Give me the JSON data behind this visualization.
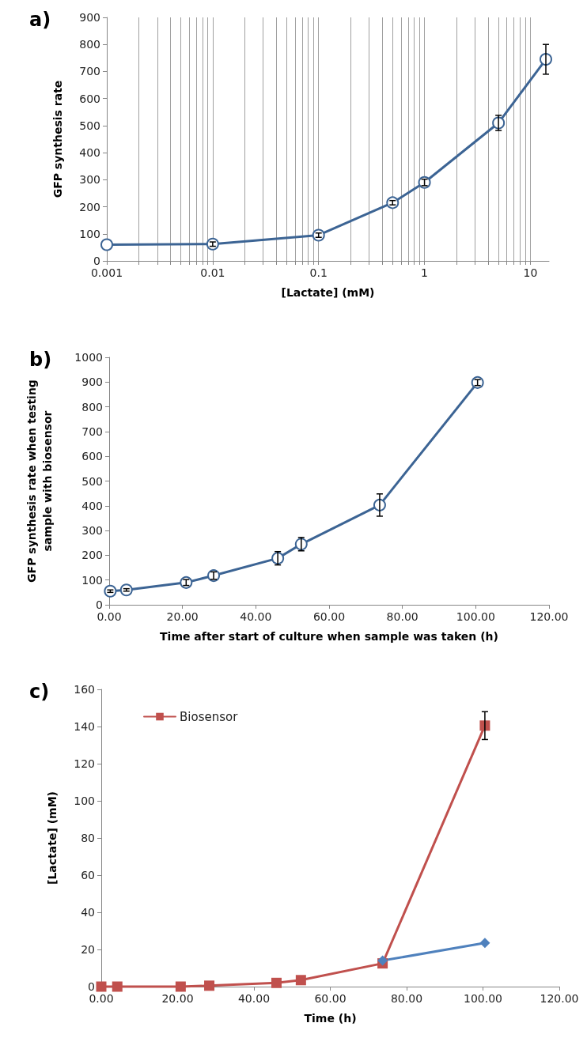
{
  "chart_data": [
    {
      "type": "line",
      "title": "a)",
      "xlabel": "[Lactate] (mM)",
      "ylabel": "GFP synthesis rate",
      "log": "x",
      "grid": "x",
      "marker": "circle",
      "line_style": "solid",
      "legend": false,
      "xlim": [
        0.001,
        15
      ],
      "ylim": [
        0,
        900
      ],
      "yticks": [
        0,
        100,
        200,
        300,
        400,
        500,
        600,
        700,
        800,
        900
      ],
      "xticks": [
        0.001,
        {
          "value": 0.002,
          "label": null
        },
        {
          "value": 0.003,
          "label": null
        },
        {
          "value": 0.004,
          "label": null
        },
        {
          "value": 0.005,
          "label": null
        },
        {
          "value": 0.006,
          "label": null
        },
        {
          "value": 0.007,
          "label": null
        },
        {
          "value": 0.008,
          "label": null
        },
        {
          "value": 0.009,
          "label": null
        },
        0.01,
        {
          "value": 0.02,
          "label": null
        },
        {
          "value": 0.03,
          "label": null
        },
        {
          "value": 0.04,
          "label": null
        },
        {
          "value": 0.05,
          "label": null
        },
        {
          "value": 0.06,
          "label": null
        },
        {
          "value": 0.07,
          "label": null
        },
        {
          "value": 0.08,
          "label": null
        },
        {
          "value": 0.09,
          "label": null
        },
        0.1,
        {
          "value": 0.2,
          "label": null
        },
        {
          "value": 0.3,
          "label": null
        },
        {
          "value": 0.4,
          "label": null
        },
        {
          "value": 0.5,
          "label": null
        },
        {
          "value": 0.6,
          "label": null
        },
        {
          "value": 0.7,
          "label": null
        },
        {
          "value": 0.8,
          "label": null
        },
        {
          "value": 0.9,
          "label": null
        },
        1,
        {
          "value": 2,
          "label": null
        },
        {
          "value": 3,
          "label": null
        },
        {
          "value": 4,
          "label": null
        },
        {
          "value": 5,
          "label": null
        },
        {
          "value": 6,
          "label": null
        },
        {
          "value": 7,
          "label": null
        },
        {
          "value": 8,
          "label": null
        },
        {
          "value": 9,
          "label": null
        },
        10
      ],
      "x": [
        0.001,
        0.01,
        0.1,
        0.5,
        1,
        5,
        14
      ],
      "series": [
        {
          "color": "#3c6494",
          "values": [
            60,
            62,
            95,
            215,
            290,
            510,
            745
          ],
          "errors": [
            null,
            8,
            8,
            8,
            12,
            28,
            55
          ]
        }
      ]
    },
    {
      "type": "line",
      "title": "b)",
      "xlabel": "Time after start of culture when sample was taken (h)",
      "ylabel": "GFP synthesis rate when testing\nsample with biosensor",
      "grid": false,
      "marker": "circle",
      "line_style": "solid",
      "legend": false,
      "xlim": [
        0,
        120
      ],
      "xticks": [
        {
          "value": 0,
          "label": "0.00"
        },
        {
          "value": 20,
          "label": "20.00"
        },
        {
          "value": 40,
          "label": "40.00"
        },
        {
          "value": 60,
          "label": "60.00"
        },
        {
          "value": 80,
          "label": "80.00"
        },
        {
          "value": 100,
          "label": "100.00"
        },
        {
          "value": 120,
          "label": "120.00"
        }
      ],
      "ylim": [
        0,
        1000
      ],
      "yticks": [
        0,
        100,
        200,
        300,
        400,
        500,
        600,
        700,
        800,
        900,
        1000
      ],
      "x": [
        0.3,
        4.7,
        21,
        28.5,
        46,
        52.4,
        73.8,
        100.5
      ],
      "series": [
        {
          "color": "#3c6494",
          "values": [
            55,
            60,
            90,
            118,
            188,
            245,
            403,
            898
          ],
          "errors": [
            5,
            5,
            12,
            15,
            27,
            27,
            45,
            12
          ]
        }
      ]
    },
    {
      "type": "line",
      "title": "c)",
      "xlabel": "Time (h)",
      "ylabel": "[Lactate] (mM)",
      "grid": false,
      "line_style": "solid",
      "legend": "top left",
      "xlim": [
        0,
        120
      ],
      "xticks": [
        {
          "value": 0,
          "label": "0.00"
        },
        {
          "value": 20,
          "label": "20.00"
        },
        {
          "value": 40,
          "label": "40.00"
        },
        {
          "value": 60,
          "label": "60.00"
        },
        {
          "value": 80,
          "label": "80.00"
        },
        {
          "value": 100,
          "label": "100.00"
        },
        {
          "value": 120,
          "label": "120.00"
        }
      ],
      "ylim": [
        0,
        160
      ],
      "yticks": [
        0,
        20,
        40,
        60,
        80,
        100,
        120,
        140,
        160
      ],
      "series": [
        {
          "name": "Biosensor",
          "color": "#c0504d",
          "marker": "square",
          "x": [
            0,
            4.2,
            20.8,
            28.3,
            45.9,
            52.3,
            73.7,
            100.5
          ],
          "values": [
            0,
            0,
            0,
            0.5,
            2,
            3.5,
            12.5,
            140.5
          ],
          "errors": [
            null,
            null,
            null,
            null,
            null,
            null,
            null,
            7.5
          ]
        },
        {
          "color": "#4f81bd",
          "marker": "diamond",
          "x": [
            73.7,
            100.5
          ],
          "values": [
            14,
            23.5
          ]
        }
      ]
    }
  ]
}
